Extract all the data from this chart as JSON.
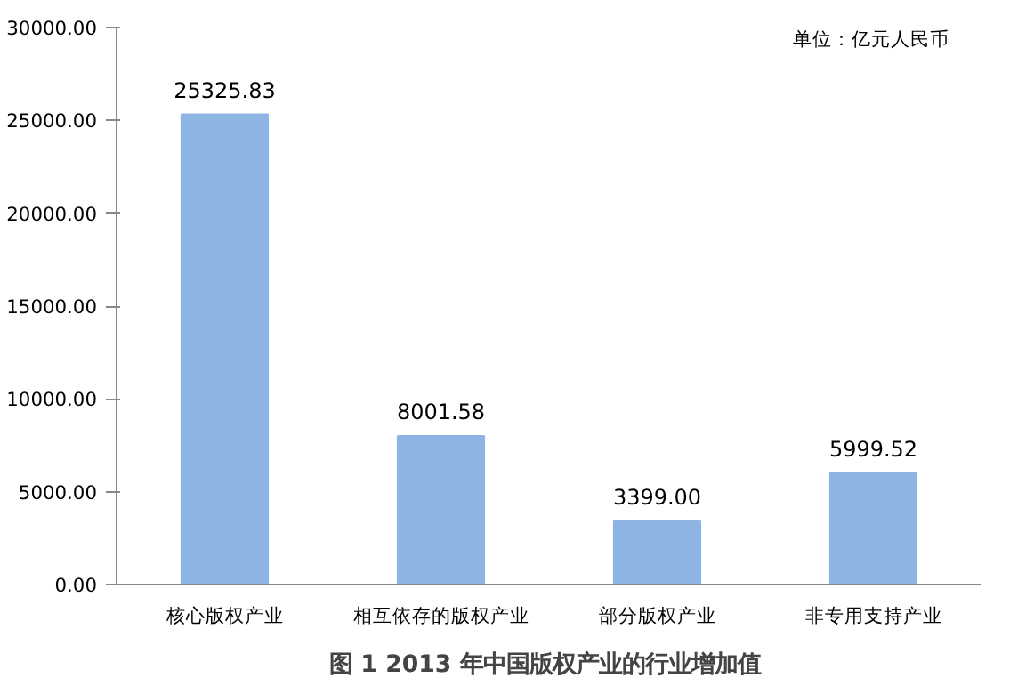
{
  "chart_data": {
    "type": "bar",
    "title": "图 1  2013 年中国版权产业的行业增加值",
    "categories": [
      "核心版权产业",
      "相互依存的版权产业",
      "部分版权产业",
      "非专用支持产业"
    ],
    "values": [
      25325.83,
      8001.58,
      3399.0,
      5999.52
    ],
    "color": "#8eb4e3",
    "value_labels": [
      "25325.83",
      "8001.58",
      "3399.00",
      "5999.52"
    ],
    "ylim": [
      0,
      30000
    ],
    "yticks": [
      {
        "value": 0,
        "label": "0.00"
      },
      {
        "value": 5000,
        "label": "5000.00"
      },
      {
        "value": 10000,
        "label": "10000.00"
      },
      {
        "value": 15000,
        "label": "15000.00"
      },
      {
        "value": 20000,
        "label": "20000.00"
      },
      {
        "value": 25000,
        "label": "25000.00"
      },
      {
        "value": 30000,
        "label": "30000.00"
      }
    ],
    "annotations": [
      "单位：亿元人民币"
    ],
    "grid": false
  }
}
